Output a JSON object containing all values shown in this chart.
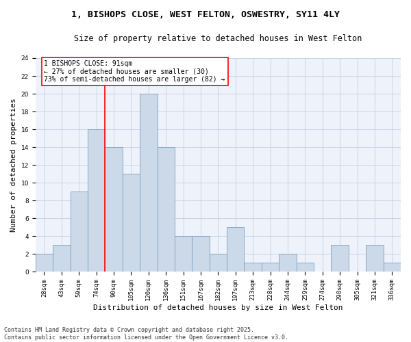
{
  "title_line1": "1, BISHOPS CLOSE, WEST FELTON, OSWESTRY, SY11 4LY",
  "title_line2": "Size of property relative to detached houses in West Felton",
  "xlabel": "Distribution of detached houses by size in West Felton",
  "ylabel": "Number of detached properties",
  "bar_labels": [
    "28sqm",
    "43sqm",
    "59sqm",
    "74sqm",
    "90sqm",
    "105sqm",
    "120sqm",
    "136sqm",
    "151sqm",
    "167sqm",
    "182sqm",
    "197sqm",
    "213sqm",
    "228sqm",
    "244sqm",
    "259sqm",
    "274sqm",
    "290sqm",
    "305sqm",
    "321sqm",
    "336sqm"
  ],
  "bar_values": [
    2,
    3,
    9,
    16,
    14,
    11,
    20,
    14,
    4,
    4,
    2,
    5,
    1,
    1,
    2,
    1,
    0,
    3,
    0,
    3,
    1
  ],
  "bar_color": "#ccd9e8",
  "bar_edge_color": "#7a9ebe",
  "annotation_text": "1 BISHOPS CLOSE: 91sqm\n← 27% of detached houses are smaller (30)\n73% of semi-detached houses are larger (82) →",
  "annotation_box_edge_color": "red",
  "vline_color": "red",
  "vline_x_index": 4,
  "ylim": [
    0,
    24
  ],
  "yticks": [
    0,
    2,
    4,
    6,
    8,
    10,
    12,
    14,
    16,
    18,
    20,
    22,
    24
  ],
  "grid_color": "#c8d4e4",
  "background_color": "#eef2fa",
  "footer_line1": "Contains HM Land Registry data © Crown copyright and database right 2025.",
  "footer_line2": "Contains public sector information licensed under the Open Government Licence v3.0.",
  "title_fontsize": 9.5,
  "subtitle_fontsize": 8.5,
  "tick_fontsize": 6.5,
  "ylabel_fontsize": 8,
  "xlabel_fontsize": 8,
  "annotation_fontsize": 7,
  "footer_fontsize": 6
}
